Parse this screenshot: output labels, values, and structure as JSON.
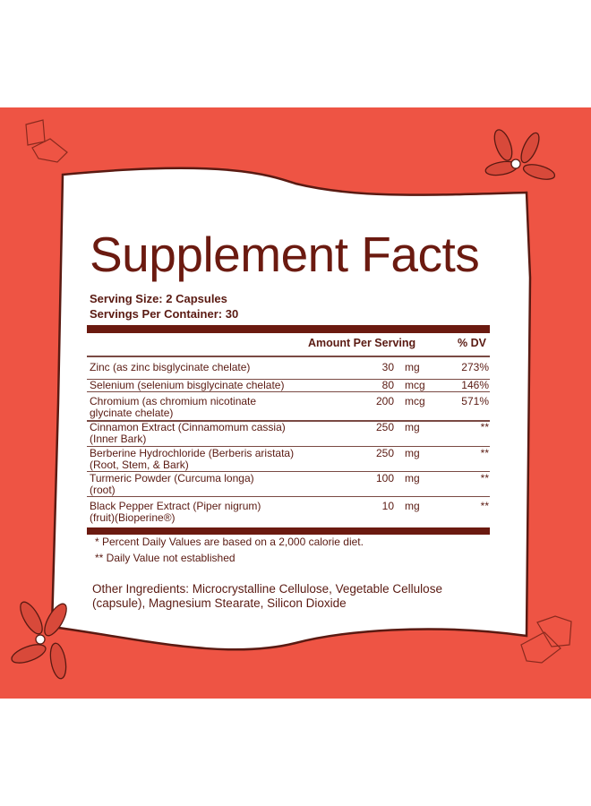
{
  "title": "Supplement Facts",
  "serving_size": "Serving Size: 2 Capsules",
  "servings_per_container": "Servings Per Container: 30",
  "header": {
    "amount": "Amount Per Serving",
    "dv": "% DV"
  },
  "rows": [
    {
      "name": "Zinc (as zinc bisglycinate chelate)",
      "amount": "30",
      "unit": "mg",
      "dv": "273%"
    },
    {
      "name": "Selenium (selenium bisglycinate chelate)",
      "amount": "80",
      "unit": "mcg",
      "dv": "146%"
    },
    {
      "name": "Chromium (as chromium nicotinate glycinate chelate)",
      "amount": "200",
      "unit": "mcg",
      "dv": "571%"
    },
    {
      "name": "Cinnamon Extract (Cinnamomum cassia) (Inner Bark)",
      "amount": "250",
      "unit": "mg",
      "dv": "**"
    },
    {
      "name": "Berberine Hydrochloride (Berberis aristata) (Root, Stem, & Bark)",
      "amount": "250",
      "unit": "mg",
      "dv": "**"
    },
    {
      "name": "Turmeric Powder (Curcuma longa) (root)",
      "amount": "100",
      "unit": "mg",
      "dv": "**"
    },
    {
      "name": "Black Pepper Extract (Piper nigrum) (fruit)(Bioperine®)",
      "amount": "10",
      "unit": "mg",
      "dv": "**"
    }
  ],
  "footnotes": [
    "* Percent Daily Values are based on a 2,000 calorie diet.",
    "** Daily Value not established"
  ],
  "other_ingredients": "Other Ingredients: Microcrystalline Cellulose, Vegetable Cellulose (capsule), Magnesium Stearate, Silicon Dioxide",
  "colors": {
    "background": "#ee5444",
    "text": "#5a1a12",
    "bar": "#6b1a10"
  },
  "decorations": [
    "sugar-cube-icon",
    "star-anise-icon"
  ]
}
